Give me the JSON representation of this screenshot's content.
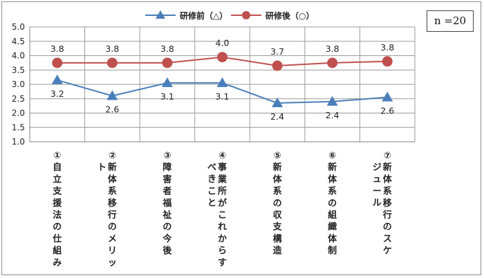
{
  "note": "n =20",
  "chart_data": {
    "type": "line",
    "categories": [
      "①自立支援法の仕組み",
      "②新体系移行のメリット",
      "③障害者福祉の今後",
      "④事業所がこれからすべきこと",
      "⑤新体系の収支構造",
      "⑥新体系の組織体制",
      "⑦新体系移行のスケジュール"
    ],
    "category_lines": [
      [
        "①",
        "自立支援法の仕組み"
      ],
      [
        "②",
        "新体系移行のメリッ",
        "ト"
      ],
      [
        "③",
        "障害者福祉の今後"
      ],
      [
        "④",
        "事業所がこれからす",
        "べきこと"
      ],
      [
        "⑤",
        "新体系の収支構造"
      ],
      [
        "⑥",
        "新体系の組織体制"
      ],
      [
        "⑦",
        "新体系移行のスケ",
        "ジュール"
      ]
    ],
    "series": [
      {
        "name": "研修前（△）",
        "color": "#4a7ebb",
        "marker": "triangle",
        "values": [
          3.15,
          2.6,
          3.05,
          3.05,
          2.35,
          2.4,
          2.55
        ],
        "labels": [
          "3.2",
          "2.6",
          "3.1",
          "3.1",
          "2.4",
          "2.4",
          "2.6"
        ]
      },
      {
        "name": "研修後（○）",
        "color": "#c0504d",
        "marker": "circle",
        "values": [
          3.75,
          3.75,
          3.75,
          3.95,
          3.65,
          3.75,
          3.8
        ],
        "labels": [
          "3.8",
          "3.8",
          "3.8",
          "4.0",
          "3.7",
          "3.8",
          "3.8"
        ]
      }
    ],
    "y_ticks": [
      "1.0",
      "1.5",
      "2.0",
      "2.5",
      "3.0",
      "3.5",
      "4.0",
      "4.5",
      "5.0"
    ],
    "ylim": [
      1.0,
      5.0
    ],
    "grid": true,
    "legend_position": "top-center"
  }
}
